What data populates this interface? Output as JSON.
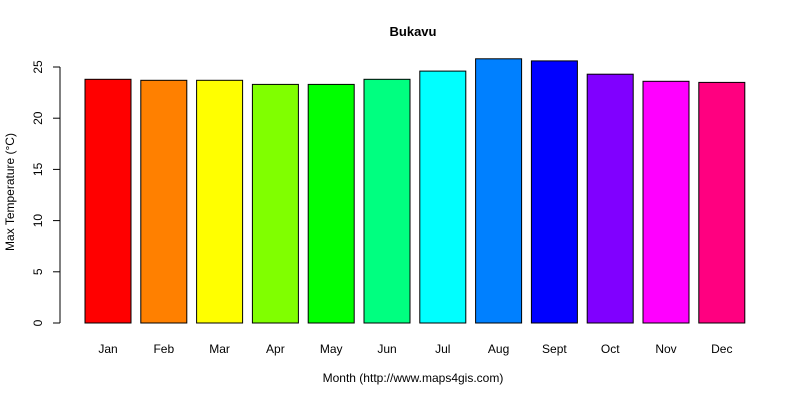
{
  "chart_data": {
    "type": "bar",
    "title": "Bukavu",
    "xlabel": "Month (http://www.maps4gis.com)",
    "ylabel": "Max Temperature (°C)",
    "categories": [
      "Jan",
      "Feb",
      "Mar",
      "Apr",
      "May",
      "Jun",
      "Jul",
      "Aug",
      "Sept",
      "Oct",
      "Nov",
      "Dec"
    ],
    "values": [
      23.8,
      23.7,
      23.7,
      23.3,
      23.3,
      23.8,
      24.6,
      25.8,
      25.6,
      24.3,
      23.6,
      23.5
    ],
    "colors": [
      "#FF0000",
      "#FF8000",
      "#FFFF00",
      "#80FF00",
      "#00FF00",
      "#00FF80",
      "#00FFFF",
      "#0080FF",
      "#0000FF",
      "#8000FF",
      "#FF00FF",
      "#FF0080"
    ],
    "yticks": [
      0,
      5,
      10,
      15,
      20,
      25
    ],
    "ylim": [
      0,
      25
    ],
    "grid": false,
    "legend": "none"
  }
}
